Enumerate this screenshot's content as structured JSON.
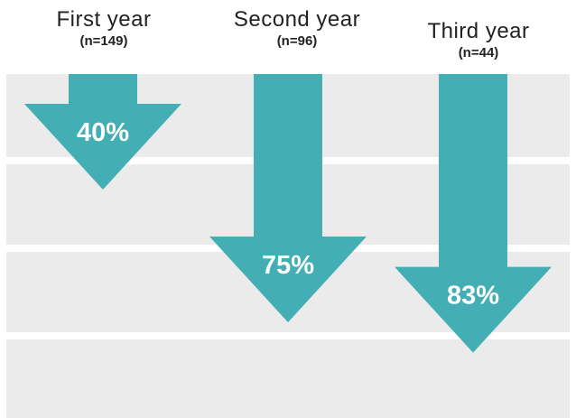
{
  "chart_data": {
    "type": "bar",
    "categories": [
      "First year",
      "Second year",
      "Third year"
    ],
    "sample_sizes": [
      "(n=149)",
      "(n=96)",
      "(n=44)"
    ],
    "values": [
      40,
      75,
      83
    ],
    "value_labels": [
      "40%",
      "75%",
      "83%"
    ],
    "ylim": [
      0,
      100
    ],
    "color": "#43afb5"
  }
}
